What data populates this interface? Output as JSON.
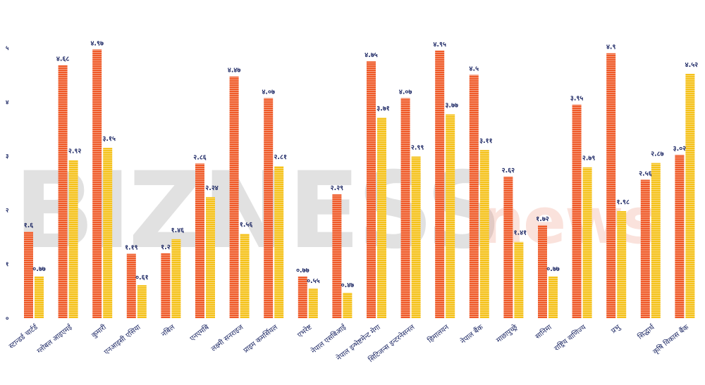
{
  "watermark": {
    "main": "BIZNESS",
    "sub": "news"
  },
  "colors": {
    "series_a": "#ef5a28",
    "series_b": "#f5c21a",
    "label": "#1f2a66",
    "axis": "#1f2a66",
    "stripe": "#ffffff"
  },
  "chart_data": {
    "type": "bar",
    "title": "",
    "xlabel": "",
    "ylabel": "",
    "ylim": [
      0,
      5
    ],
    "y_ticks": [
      0,
      1,
      2,
      3,
      4,
      5
    ],
    "y_tick_labels": [
      "०",
      "१",
      "२",
      "३",
      "४",
      "५"
    ],
    "legend": "none",
    "grid": false,
    "categories": [
      "स्टान्डर्ड चार्टर्ड",
      "ग्लोबल आइएमई",
      "कुमारी",
      "एनआइसी एसिया",
      "नबिल",
      "एनएमबि",
      "लक्ष्मी सनराइज",
      "प्राइम कमर्सियल",
      "एभरेष्ट",
      "नेपाल एसबिआई",
      "नेपाल इन्भेष्टमेन्ट मेगा",
      "सिटिजन्स इन्टरनेसनल",
      "हिमालयन",
      "नेपाल बैंक",
      "माछापुच्छ्रे",
      "सानिमा",
      "राष्ट्रिय वाणिज्य",
      "प्रभु",
      "सिद्धार्थ",
      "कृषि विकास बैंक"
    ],
    "series": [
      {
        "values": [
          1.6,
          4.68,
          4.97,
          1.19,
          1.2,
          2.86,
          4.47,
          4.07,
          0.77,
          2.29,
          4.75,
          4.07,
          4.95,
          4.5,
          2.62,
          1.72,
          3.95,
          4.9,
          2.56,
          3.02
        ],
        "labels": [
          "१.६",
          "४.६८",
          "४.९७",
          "१.१९",
          "१.२",
          "२.८६",
          "४.४७",
          "४.०७",
          "०.७७",
          "२.२९",
          "४.७५",
          "४.०७",
          "४.९५",
          "४.५",
          "२.६२",
          "१.७२",
          "३.९५",
          "४.९",
          "२.५६",
          "३.०२"
        ]
      },
      {
        "values": [
          0.77,
          2.92,
          3.15,
          0.61,
          1.46,
          2.24,
          1.56,
          2.81,
          0.55,
          0.47,
          3.71,
          2.99,
          3.77,
          3.11,
          1.41,
          0.77,
          2.79,
          1.98,
          2.87,
          4.52
        ],
        "labels": [
          "०.७७",
          "२.९२",
          "३.१५",
          "०.६१",
          "१.४६",
          "२.२४",
          "१.५६",
          "२.८१",
          "०.५५",
          "०.४७",
          "३.७१",
          "२.९९",
          "३.७७",
          "३.११",
          "१.४१",
          "०.७७",
          "२.७९",
          "१.९८",
          "२.८७",
          "४.५२"
        ]
      }
    ]
  }
}
